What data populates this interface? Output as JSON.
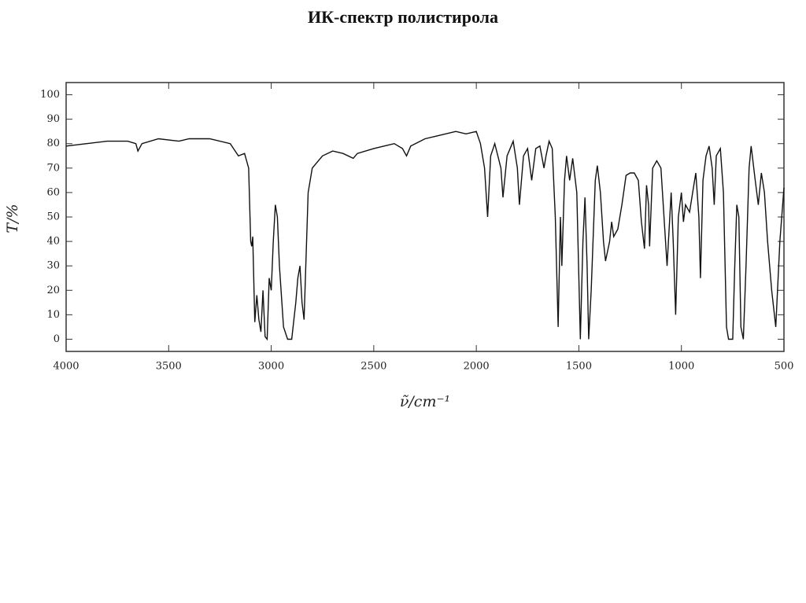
{
  "chart_data": {
    "type": "line",
    "title": "ИК-спектр полистирола",
    "xlabel": "ν̃/cm⁻¹",
    "ylabel": "T/%",
    "xlim": [
      4000,
      500
    ],
    "ylim": [
      -5,
      105
    ],
    "xticks": [
      4000,
      3500,
      3000,
      2500,
      2000,
      1500,
      1000,
      500
    ],
    "yticks": [
      0,
      10,
      20,
      30,
      40,
      50,
      60,
      70,
      80,
      90,
      100
    ],
    "series": [
      {
        "color": "#111111",
        "x": [
          4000,
          3900,
          3800,
          3700,
          3660,
          3650,
          3630,
          3550,
          3450,
          3400,
          3300,
          3200,
          3160,
          3130,
          3110,
          3100,
          3095,
          3090,
          3080,
          3070,
          3060,
          3050,
          3040,
          3030,
          3020,
          3010,
          3000,
          2990,
          2980,
          2970,
          2960,
          2940,
          2920,
          2900,
          2880,
          2870,
          2860,
          2850,
          2840,
          2820,
          2800,
          2750,
          2700,
          2650,
          2600,
          2580,
          2500,
          2450,
          2400,
          2360,
          2340,
          2320,
          2250,
          2200,
          2100,
          2050,
          2000,
          1980,
          1960,
          1945,
          1930,
          1910,
          1880,
          1870,
          1850,
          1820,
          1800,
          1790,
          1770,
          1750,
          1730,
          1710,
          1690,
          1670,
          1660,
          1645,
          1630,
          1615,
          1601,
          1590,
          1583,
          1570,
          1560,
          1545,
          1530,
          1510,
          1493,
          1480,
          1470,
          1460,
          1452,
          1440,
          1420,
          1410,
          1395,
          1380,
          1370,
          1350,
          1340,
          1330,
          1310,
          1290,
          1270,
          1250,
          1230,
          1210,
          1195,
          1180,
          1170,
          1160,
          1155,
          1140,
          1120,
          1100,
          1085,
          1070,
          1050,
          1040,
          1028,
          1015,
          1000,
          990,
          980,
          960,
          945,
          930,
          915,
          907,
          895,
          880,
          865,
          850,
          840,
          830,
          810,
          795,
          780,
          770,
          750,
          740,
          730,
          720,
          710,
          698,
          685,
          670,
          660,
          640,
          625,
          610,
          595,
          580,
          560,
          540,
          520,
          500
        ],
        "values": [
          79,
          80,
          81,
          81,
          80,
          77,
          80,
          82,
          81,
          82,
          82,
          80,
          75,
          76,
          70,
          40,
          38,
          42,
          7,
          18,
          8,
          3,
          20,
          1,
          0,
          25,
          20,
          40,
          55,
          50,
          30,
          5,
          0,
          0,
          15,
          25,
          30,
          15,
          8,
          60,
          70,
          75,
          77,
          76,
          74,
          76,
          78,
          79,
          80,
          78,
          75,
          79,
          82,
          83,
          85,
          84,
          85,
          80,
          70,
          50,
          75,
          80,
          70,
          58,
          75,
          81,
          70,
          55,
          75,
          78,
          65,
          78,
          79,
          70,
          75,
          81,
          78,
          50,
          5,
          50,
          30,
          65,
          75,
          65,
          74,
          60,
          0,
          40,
          58,
          30,
          0,
          20,
          65,
          71,
          60,
          40,
          32,
          40,
          48,
          42,
          45,
          55,
          67,
          68,
          68,
          65,
          48,
          37,
          63,
          55,
          38,
          70,
          73,
          70,
          50,
          30,
          60,
          40,
          10,
          50,
          60,
          48,
          55,
          52,
          60,
          68,
          50,
          25,
          65,
          75,
          79,
          70,
          55,
          75,
          78,
          60,
          5,
          0,
          0,
          30,
          55,
          50,
          5,
          0,
          30,
          70,
          79,
          65,
          55,
          68,
          60,
          40,
          20,
          5,
          40,
          62
        ]
      }
    ]
  }
}
